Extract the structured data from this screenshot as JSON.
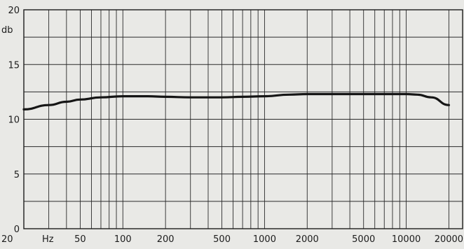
{
  "chart_data": {
    "type": "line",
    "title": "",
    "xlabel": "Hz",
    "ylabel": "db",
    "x_scale": "log",
    "xlim": [
      20,
      25000
    ],
    "ylim": [
      0,
      20
    ],
    "grid": true,
    "x_ticks": [
      {
        "value": 20,
        "label": "20"
      },
      {
        "value": 50,
        "label": "50"
      },
      {
        "value": 100,
        "label": "100"
      },
      {
        "value": 200,
        "label": "200"
      },
      {
        "value": 500,
        "label": "500"
      },
      {
        "value": 1000,
        "label": "1000"
      },
      {
        "value": 2000,
        "label": "2000"
      },
      {
        "value": 5000,
        "label": "5000"
      },
      {
        "value": 10000,
        "label": "10000"
      },
      {
        "value": 20000,
        "label": "20000"
      }
    ],
    "y_ticks": [
      {
        "value": 0,
        "label": "0"
      },
      {
        "value": 5,
        "label": "5"
      },
      {
        "value": 10,
        "label": "10"
      },
      {
        "value": 15,
        "label": "15"
      },
      {
        "value": 20,
        "label": "20"
      }
    ],
    "series": [
      {
        "x": [
          20,
          30,
          40,
          50,
          70,
          100,
          150,
          200,
          300,
          500,
          700,
          1000,
          1500,
          2000,
          3000,
          5000,
          7000,
          10000,
          12000,
          15000,
          20000
        ],
        "y": [
          10.9,
          11.3,
          11.6,
          11.8,
          12.0,
          12.1,
          12.1,
          12.05,
          12.0,
          12.0,
          12.05,
          12.1,
          12.25,
          12.3,
          12.3,
          12.3,
          12.3,
          12.3,
          12.25,
          12.0,
          11.3
        ]
      }
    ]
  }
}
